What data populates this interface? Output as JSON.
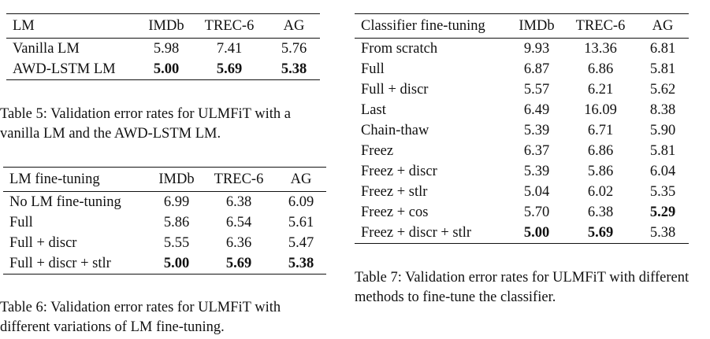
{
  "table5": {
    "headers": [
      "LM",
      "IMDb",
      "TREC-6",
      "AG"
    ],
    "rows": [
      [
        "Vanilla LM",
        "5.98",
        "7.41",
        "5.76"
      ],
      [
        "AWD-LSTM LM",
        "5.00",
        "5.69",
        "5.38"
      ]
    ],
    "caption": "Table 5: Validation error rates for ULMFiT with a vanilla LM and the AWD-LSTM LM."
  },
  "table6": {
    "headers": [
      "LM fine-tuning",
      "IMDb",
      "TREC-6",
      "AG"
    ],
    "rows": [
      [
        "No LM fine-tuning",
        "6.99",
        "6.38",
        "6.09"
      ],
      [
        "Full",
        "5.86",
        "6.54",
        "5.61"
      ],
      [
        "Full + discr",
        "5.55",
        "6.36",
        "5.47"
      ],
      [
        "Full + discr + stlr",
        "5.00",
        "5.69",
        "5.38"
      ]
    ],
    "caption": "Table 6: Validation error rates for ULMFiT with different variations of LM fine-tuning."
  },
  "table7": {
    "headers": [
      "Classifier fine-tuning",
      "IMDb",
      "TREC-6",
      "AG"
    ],
    "rows": [
      [
        "From scratch",
        "9.93",
        "13.36",
        "6.81"
      ],
      [
        "Full",
        "6.87",
        "6.86",
        "5.81"
      ],
      [
        "Full + discr",
        "5.57",
        "6.21",
        "5.62"
      ],
      [
        "Last",
        "6.49",
        "16.09",
        "8.38"
      ],
      [
        "Chain-thaw",
        "5.39",
        "6.71",
        "5.90"
      ],
      [
        "Freez",
        "6.37",
        "6.86",
        "5.81"
      ],
      [
        "Freez + discr",
        "5.39",
        "5.86",
        "6.04"
      ],
      [
        "Freez + stlr",
        "5.04",
        "6.02",
        "5.35"
      ],
      [
        "Freez + cos",
        "5.70",
        "6.38",
        "5.29"
      ],
      [
        "Freez + discr + stlr",
        "5.00",
        "5.69",
        "5.38"
      ]
    ],
    "caption": "Table 7: Validation error rates for ULMFiT with different methods to fine-tune the classifier."
  }
}
